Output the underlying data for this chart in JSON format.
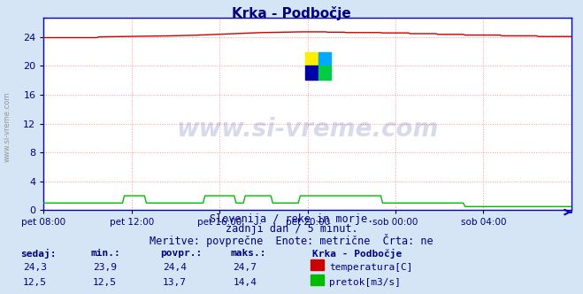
{
  "title": "Krka - Podbočje",
  "title_color": "#000080",
  "bg_color": "#d5e5f5",
  "plot_bg_color": "#ffffff",
  "grid_color": "#ff9999",
  "grid_linestyle": ":",
  "xlabel_ticks": [
    "pet 08:00",
    "pet 12:00",
    "pet 16:00",
    "pet 20:00",
    "sob 00:00",
    "sob 04:00"
  ],
  "xlabel_positions_norm": [
    0.0,
    0.1666,
    0.3333,
    0.5,
    0.6666,
    0.8333
  ],
  "total_points": 289,
  "ylim": [
    0,
    26.666
  ],
  "yticks": [
    0,
    4,
    8,
    12,
    16,
    20,
    24
  ],
  "ylabel_color": "#000080",
  "watermark_text": "www.si-vreme.com",
  "watermark_color": "#000080",
  "watermark_alpha": 0.15,
  "footer_lines": [
    "Slovenija / reke in morje.",
    "zadnji dan / 5 minut.",
    "Meritve: povprečne  Enote: metrične  Črta: ne"
  ],
  "footer_color": "#000080",
  "footer_fontsize": 8.5,
  "table_headers": [
    "sedaj:",
    "min.:",
    "povpr.:",
    "maks.:"
  ],
  "table_header_color": "#000080",
  "station_name": "Krka - Podbočje",
  "legend": [
    {
      "label": "temperatura[C]",
      "color": "#cc0000"
    },
    {
      "label": "pretok[m3/s]",
      "color": "#00bb00"
    }
  ],
  "table_rows": [
    {
      "sedaj": "24,3",
      "min": "23,9",
      "povpr": "24,4",
      "maks": "24,7"
    },
    {
      "sedaj": "12,5",
      "min": "12,5",
      "povpr": "13,7",
      "maks": "14,4"
    }
  ],
  "temp_color": "#cc0000",
  "flow_color": "#00bb00",
  "axis_color": "#0000cc",
  "border_color": "#0000cc",
  "logo_colors": [
    "#ffee00",
    "#00aaff",
    "#0000aa",
    "#00cc44"
  ],
  "left_label": "www.si-vreme.com"
}
